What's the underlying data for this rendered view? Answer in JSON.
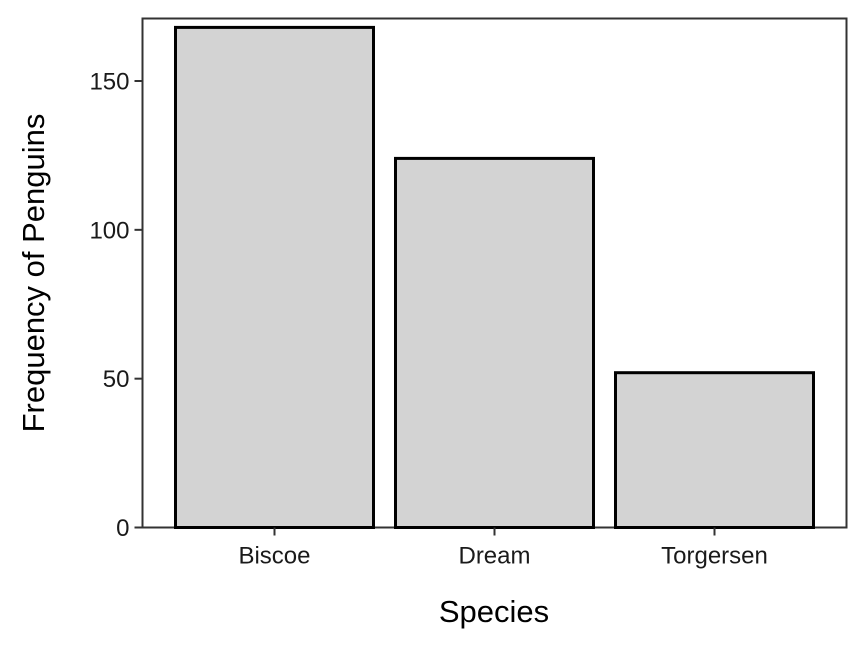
{
  "chart_data": {
    "type": "bar",
    "categories": [
      "Biscoe",
      "Dream",
      "Torgersen"
    ],
    "values": [
      168,
      124,
      52
    ],
    "title": "",
    "xlabel": "Species",
    "ylabel": "Frequency of Penguins",
    "ylim": [
      0,
      171
    ],
    "yticks": [
      0,
      50,
      100,
      150
    ],
    "grid": false,
    "bar_fill": "#d3d3d3",
    "bar_stroke": "#000000",
    "panel_border": "#333333"
  }
}
